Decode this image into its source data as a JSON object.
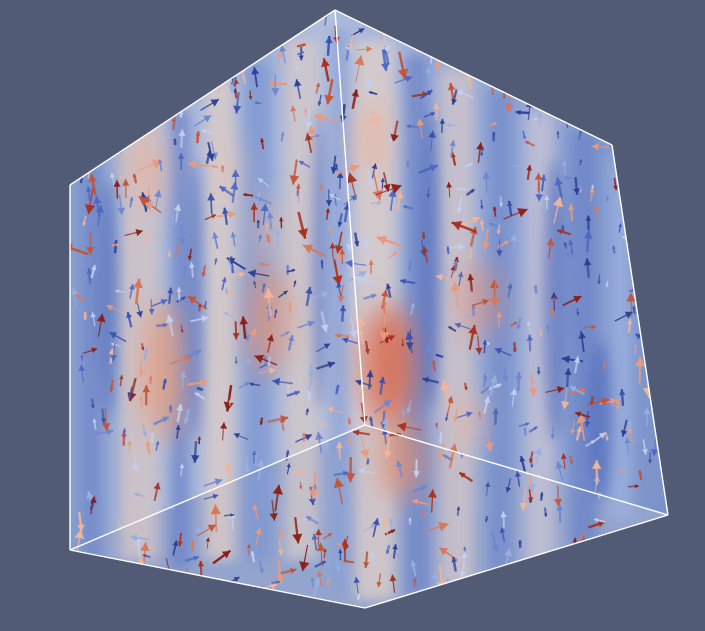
{
  "scene": {
    "kind": "3d-volume-render",
    "description_visible": false,
    "background_color": "#525b75",
    "outline_color": "#ffffff",
    "colormap": {
      "low": "#3b4cc0",
      "mid": "#dddddd",
      "high": "#b40426"
    },
    "glyph_type": "arrow",
    "glyph_count_estimate": "dense"
  }
}
